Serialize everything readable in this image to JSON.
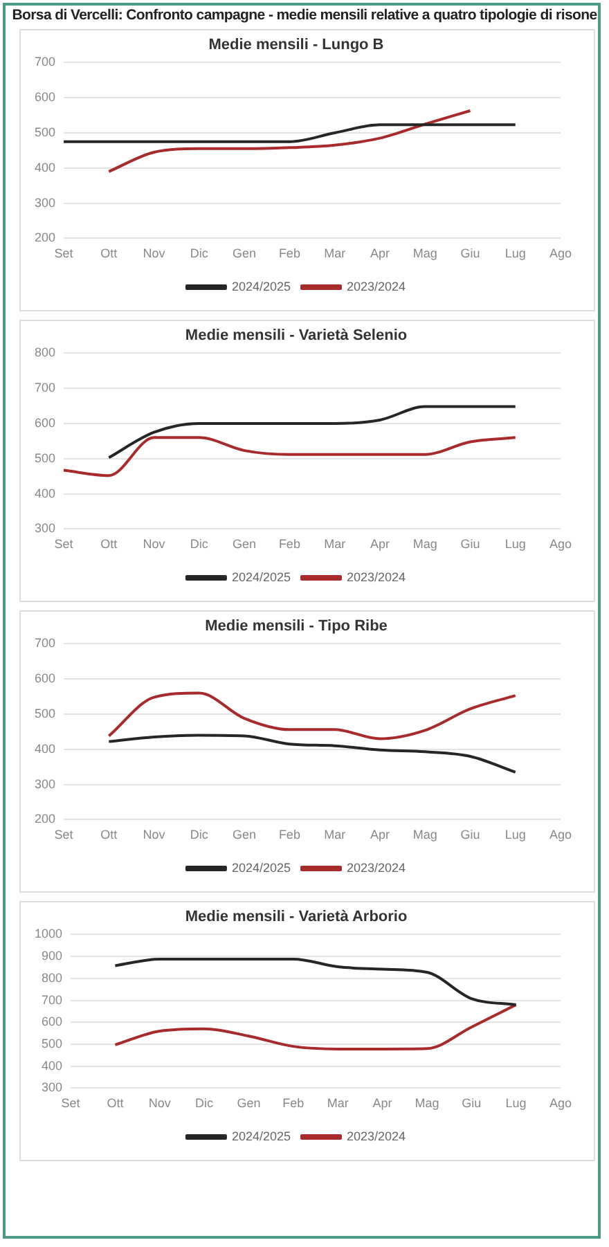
{
  "chart_data": [
    {
      "type": "line",
      "title": "Borsa di Vercelli: Confronto campagne - medie mensili relative a quatro tipologie di risone",
      "subtitle": "Medie mensili - Lungo B",
      "categories": [
        "Set",
        "Ott",
        "Nov",
        "Dic",
        "Gen",
        "Feb",
        "Mar",
        "Apr",
        "Mag",
        "Giu",
        "Lug",
        "Ago"
      ],
      "ylim": [
        200,
        700
      ],
      "yticks": [
        200,
        300,
        400,
        500,
        600,
        700
      ],
      "grid": "y",
      "legend": "bottom",
      "marker": "none",
      "series": [
        {
          "name": "2024/2025",
          "color": "#262626",
          "values": [
            475,
            475,
            475,
            475,
            475,
            475,
            500,
            523,
            523,
            523,
            523,
            null
          ]
        },
        {
          "name": "2023/2024",
          "color": "#a82a2a",
          "values": [
            null,
            390,
            445,
            455,
            455,
            458,
            465,
            485,
            525,
            563,
            null,
            null
          ]
        }
      ]
    },
    {
      "type": "line",
      "title": "Medie mensili - Varietà Selenio",
      "categories": [
        "Set",
        "Ott",
        "Nov",
        "Dic",
        "Gen",
        "Feb",
        "Mar",
        "Apr",
        "Mag",
        "Giu",
        "Lug",
        "Ago"
      ],
      "ylim": [
        300,
        800
      ],
      "yticks": [
        300,
        400,
        500,
        600,
        700,
        800
      ],
      "grid": "y",
      "legend": "bottom",
      "marker": "none",
      "series": [
        {
          "name": "2024/2025",
          "color": "#262626",
          "values": [
            null,
            503,
            575,
            600,
            600,
            600,
            600,
            610,
            648,
            648,
            648,
            null
          ]
        },
        {
          "name": "2023/2024",
          "color": "#a82a2a",
          "values": [
            467,
            452,
            560,
            560,
            523,
            512,
            512,
            512,
            512,
            548,
            560,
            null
          ]
        }
      ]
    },
    {
      "type": "line",
      "title": "Medie mensili - Tipo Ribe",
      "categories": [
        "Set",
        "Ott",
        "Nov",
        "Dic",
        "Gen",
        "Feb",
        "Mar",
        "Apr",
        "Mag",
        "Giu",
        "Lug",
        "Ago"
      ],
      "ylim": [
        200,
        700
      ],
      "yticks": [
        200,
        300,
        400,
        500,
        600,
        700
      ],
      "grid": "y",
      "legend": "bottom",
      "marker": "none",
      "series": [
        {
          "name": "2024/2025",
          "color": "#262626",
          "values": [
            null,
            422,
            435,
            440,
            438,
            415,
            410,
            398,
            393,
            380,
            335,
            null
          ]
        },
        {
          "name": "2023/2024",
          "color": "#a82a2a",
          "values": [
            null,
            438,
            548,
            560,
            488,
            456,
            456,
            430,
            454,
            515,
            553,
            null
          ]
        }
      ]
    },
    {
      "type": "line",
      "title": "Medie mensili - Varietà Arborio",
      "categories": [
        "Set",
        "Ott",
        "Nov",
        "Dic",
        "Gen",
        "Feb",
        "Mar",
        "Apr",
        "Mag",
        "Giu",
        "Lug",
        "Ago"
      ],
      "ylim": [
        300,
        1000
      ],
      "yticks": [
        300,
        400,
        500,
        600,
        700,
        800,
        900,
        1000
      ],
      "grid": "y",
      "legend": "bottom",
      "marker": "none",
      "series": [
        {
          "name": "2024/2025",
          "color": "#262626",
          "values": [
            null,
            858,
            888,
            888,
            888,
            888,
            853,
            842,
            828,
            708,
            680,
            null
          ]
        },
        {
          "name": "2023/2024",
          "color": "#a82a2a",
          "values": [
            null,
            497,
            560,
            570,
            537,
            490,
            478,
            478,
            480,
            578,
            680,
            null
          ]
        }
      ]
    }
  ]
}
